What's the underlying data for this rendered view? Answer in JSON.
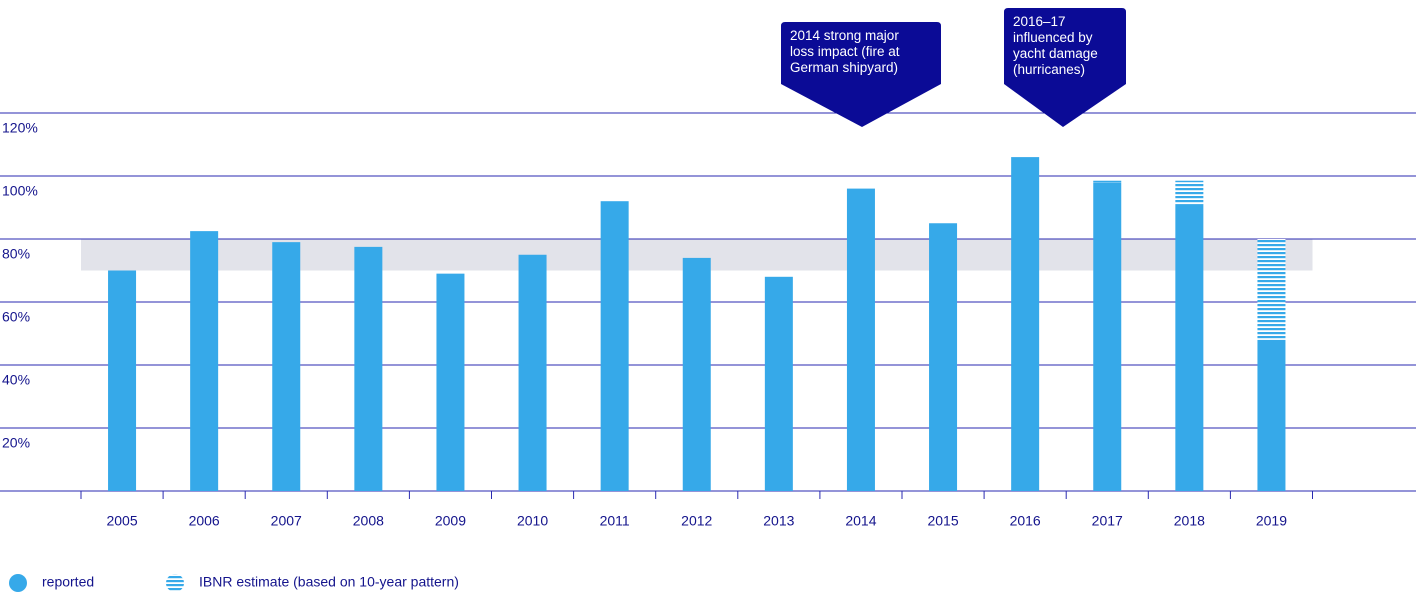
{
  "chart_data": {
    "type": "bar",
    "categories": [
      "2005",
      "2006",
      "2007",
      "2008",
      "2009",
      "2010",
      "2011",
      "2012",
      "2013",
      "2014",
      "2015",
      "2016",
      "2017",
      "2018",
      "2019"
    ],
    "series": [
      {
        "name": "reported",
        "color": "#36a9e9",
        "values": [
          70,
          82.5,
          79,
          77.5,
          69,
          75,
          92,
          74,
          68,
          96,
          85,
          106,
          98,
          91,
          48
        ]
      },
      {
        "name": "IBNR estimate (based on 10-year pattern)",
        "color": "#36a9e9",
        "pattern": "horizontal-stripes",
        "values": [
          null,
          null,
          null,
          null,
          null,
          null,
          null,
          null,
          null,
          null,
          null,
          null,
          0.5,
          7.5,
          32
        ]
      }
    ],
    "stacked": true,
    "band": [
      70,
      80
    ],
    "ylim": [
      0,
      120
    ],
    "yticks": [
      {
        "value": 20,
        "label": "20%"
      },
      {
        "value": 40,
        "label": "40%"
      },
      {
        "value": 60,
        "label": "60%"
      },
      {
        "value": 80,
        "label": "80%"
      },
      {
        "value": 100,
        "label": "100%"
      },
      {
        "value": 120,
        "label": "120%"
      }
    ],
    "grid": true,
    "annotations": [
      {
        "lines": [
          "2014 strong major",
          "loss impact (fire at",
          "German shipyard)"
        ]
      },
      {
        "lines": [
          "2016–17",
          "influenced by",
          "yacht damage",
          "(hurricanes)"
        ]
      }
    ]
  }
}
